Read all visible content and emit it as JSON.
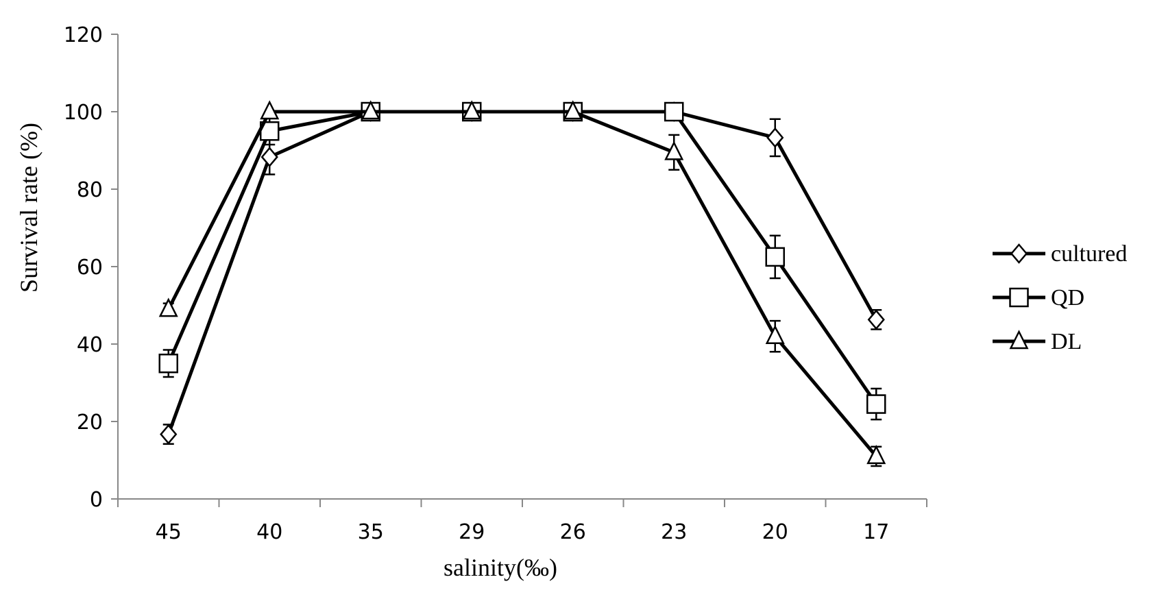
{
  "chart_data": {
    "type": "line",
    "title": "",
    "xlabel": "salinity(‰)",
    "ylabel": "Survival rate (%)",
    "categories": [
      "45",
      "40",
      "35",
      "29",
      "26",
      "23",
      "20",
      "17"
    ],
    "ylim": [
      0,
      120
    ],
    "yticks": [
      "0",
      "20",
      "40",
      "60",
      "80",
      "100",
      "120"
    ],
    "grid": false,
    "legend_position": "right",
    "series": [
      {
        "name": "cultured",
        "marker": "diamond",
        "values": [
          16.7,
          88.3,
          100,
          100,
          100,
          100,
          93.3,
          46.3
        ],
        "errors": [
          2.5,
          4.5,
          0,
          0,
          0,
          0,
          4.8,
          2.5
        ]
      },
      {
        "name": "QD",
        "marker": "square",
        "values": [
          35,
          95,
          100,
          100,
          100,
          100,
          62.5,
          24.5
        ],
        "errors": [
          3.5,
          3.5,
          0,
          0,
          0,
          0,
          5.5,
          4
        ]
      },
      {
        "name": "DL",
        "marker": "triangle",
        "values": [
          49,
          100,
          100,
          100,
          100,
          89.5,
          42,
          11
        ],
        "errors": [
          1.5,
          0,
          0,
          0,
          0,
          4.5,
          4,
          2.5
        ]
      }
    ],
    "colors": {
      "line": "#000000",
      "marker_fill": "#ffffff"
    }
  }
}
